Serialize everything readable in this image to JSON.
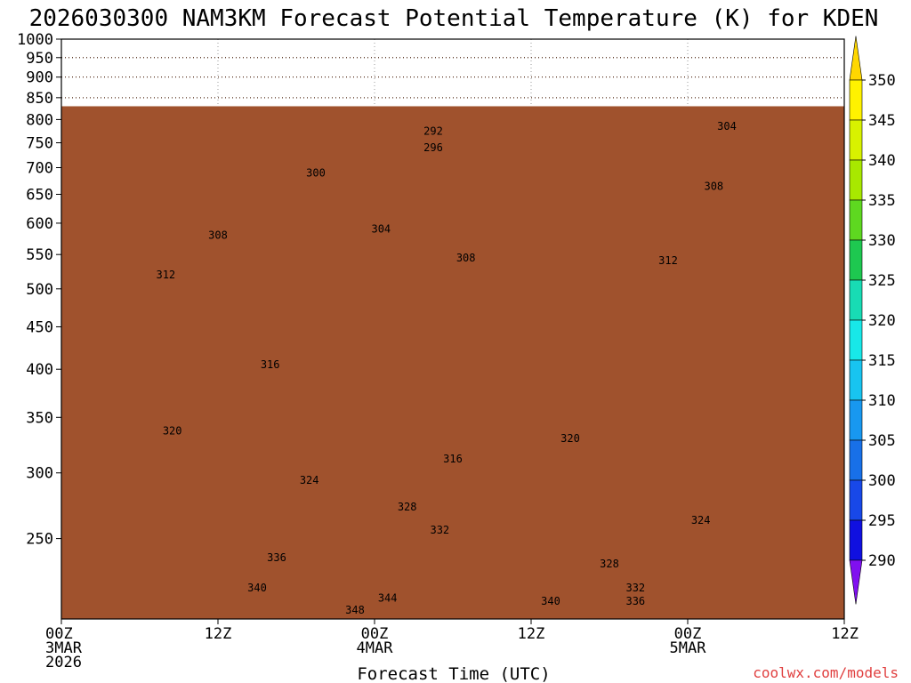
{
  "chart_data": {
    "type": "heatmap",
    "title": "2026030300 NAM3KM Forecast Potential Temperature (K) for KDEN",
    "xlabel": "Forecast Time (UTC)",
    "ylabel": "",
    "credit": "coolwx.com/models",
    "x_range_hours": [
      0,
      60
    ],
    "y_range_hpa": [
      1000,
      200
    ],
    "y_scale": "log-pressure",
    "y_ticks": [
      250,
      300,
      350,
      400,
      450,
      500,
      550,
      600,
      650,
      700,
      750,
      800,
      850,
      900,
      950,
      1000
    ],
    "x_ticks": [
      {
        "hour": 0,
        "lines": [
          "00Z",
          "3MAR",
          "2026"
        ]
      },
      {
        "hour": 12,
        "lines": [
          "12Z"
        ]
      },
      {
        "hour": 24,
        "lines": [
          "00Z",
          "4MAR"
        ]
      },
      {
        "hour": 36,
        "lines": [
          "12Z"
        ]
      },
      {
        "hour": 48,
        "lines": [
          "00Z",
          "5MAR"
        ]
      },
      {
        "hour": 60,
        "lines": [
          "12Z"
        ]
      }
    ],
    "colorbar": {
      "ticks": [
        350,
        345,
        340,
        335,
        330,
        325,
        320,
        315,
        310,
        305,
        300,
        295,
        290
      ],
      "colors": [
        "#ffd700",
        "#fff200",
        "#d8f200",
        "#a8e800",
        "#5ed820",
        "#1ec850",
        "#18dcb4",
        "#18e8e8",
        "#18c4f0",
        "#1898f0",
        "#1870e8",
        "#1848e8",
        "#1010e0",
        "#4010e8",
        "#8010f0"
      ]
    },
    "terrain_pressure_hpa": 830,
    "contour_labels": [
      {
        "value": "348",
        "hour": 22.5,
        "p": 205
      },
      {
        "value": "344",
        "hour": 25,
        "p": 212
      },
      {
        "value": "340",
        "hour": 15,
        "p": 218
      },
      {
        "value": "340",
        "hour": 37.5,
        "p": 210
      },
      {
        "value": "336",
        "hour": 44,
        "p": 210
      },
      {
        "value": "332",
        "hour": 44,
        "p": 218
      },
      {
        "value": "336",
        "hour": 16.5,
        "p": 237
      },
      {
        "value": "328",
        "hour": 42,
        "p": 233
      },
      {
        "value": "332",
        "hour": 29,
        "p": 256
      },
      {
        "value": "324",
        "hour": 49,
        "p": 263
      },
      {
        "value": "328",
        "hour": 26.5,
        "p": 273
      },
      {
        "value": "324",
        "hour": 19,
        "p": 294
      },
      {
        "value": "316",
        "hour": 30,
        "p": 312
      },
      {
        "value": "320",
        "hour": 39,
        "p": 330
      },
      {
        "value": "320",
        "hour": 8.5,
        "p": 337
      },
      {
        "value": "316",
        "hour": 16,
        "p": 405
      },
      {
        "value": "312",
        "hour": 8,
        "p": 520
      },
      {
        "value": "308",
        "hour": 31,
        "p": 545
      },
      {
        "value": "312",
        "hour": 46.5,
        "p": 541
      },
      {
        "value": "308",
        "hour": 12,
        "p": 580
      },
      {
        "value": "304",
        "hour": 24.5,
        "p": 590
      },
      {
        "value": "308",
        "hour": 50,
        "p": 665
      },
      {
        "value": "300",
        "hour": 19.5,
        "p": 690
      },
      {
        "value": "296",
        "hour": 28.5,
        "p": 740
      },
      {
        "value": "292",
        "hour": 28.5,
        "p": 775
      },
      {
        "value": "304",
        "hour": 51,
        "p": 785
      }
    ]
  }
}
